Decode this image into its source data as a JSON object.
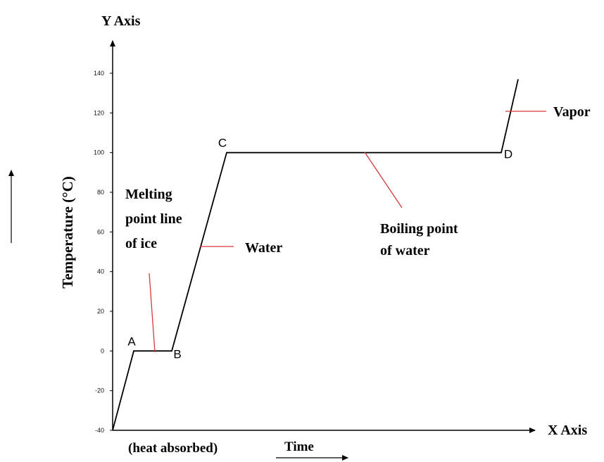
{
  "chart_data": {
    "type": "line",
    "title": "",
    "y_axis_title": "Y Axis",
    "x_axis_title": "X Axis",
    "ylabel": "Temperature (°C)",
    "xlabel_left": "(heat absorbed)",
    "xlabel_right": "Time",
    "ylim": [
      -40,
      140
    ],
    "yticks": [
      "140",
      "120",
      "100",
      "80",
      "60",
      "40",
      "20",
      "0",
      "-20",
      "-40"
    ],
    "ytick_values": [
      140,
      120,
      100,
      80,
      60,
      40,
      20,
      0,
      -20,
      -40
    ],
    "grid": false,
    "series": [
      {
        "x": [
          0,
          0.05,
          0.14,
          0.27,
          0.92,
          0.96
        ],
        "y": [
          -40,
          0,
          0,
          100,
          100,
          137
        ]
      }
    ],
    "points": [
      {
        "label": "A",
        "x": 0.05,
        "y": 0
      },
      {
        "label": "B",
        "x": 0.14,
        "y": 0
      },
      {
        "label": "C",
        "x": 0.27,
        "y": 100
      },
      {
        "label": "D",
        "x": 0.92,
        "y": 100
      }
    ],
    "annotations": {
      "melting": [
        "Melting",
        "point line",
        "of ice"
      ],
      "water": "Water",
      "boiling": [
        "Boiling point",
        "of water"
      ],
      "vapor": "Vapor"
    },
    "colors": {
      "line": "#000000",
      "annotation_line": "#d9363e"
    }
  }
}
